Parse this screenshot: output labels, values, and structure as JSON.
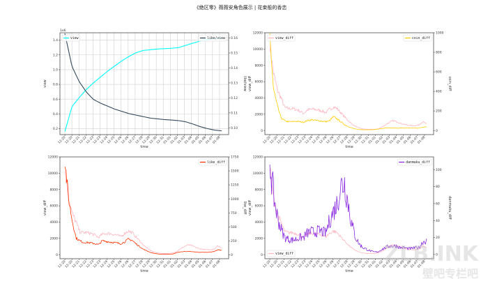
{
  "title": "《绝区零》薇薇安角色展示 | 花束般的香恋",
  "watermark": {
    "line1": "ZLB.INK",
    "line2": "壁吧专栏吧"
  },
  "chart_data": [
    {
      "type": "line",
      "xlabel": "time",
      "ylabel": "view",
      "ylabel_right": "like/view",
      "offset_text": "1e6",
      "grid": true,
      "xticks": [
        "12-20",
        "12-20",
        "12-21",
        "12-22",
        "12-23",
        "12-23",
        "12-24",
        "12-25",
        "12-26",
        "12-26",
        "12-27",
        "12-28",
        "12-29",
        "12-30",
        "12-31",
        "01-01",
        "01-02",
        "01-03",
        "01-04",
        "01-05",
        "01-06",
        "01-07",
        "01-08"
      ],
      "ylim": [
        0.12,
        1.5
      ],
      "yticks": [
        "0.2",
        "0.4",
        "0.6",
        "0.8",
        "1.0",
        "1.2",
        "1.4"
      ],
      "ylim_right": [
        0.0955,
        0.1635
      ],
      "yticks_right": [
        "0.10",
        "0.11",
        "0.12",
        "0.13",
        "0.14",
        "0.15",
        "0.16"
      ],
      "noise": 0,
      "series": [
        {
          "name": "view",
          "axis": "left",
          "color": "#00ffff",
          "legend": "top-left",
          "values": [
            0.16,
            0.5,
            0.62,
            0.73,
            0.82,
            0.9,
            0.98,
            1.05,
            1.12,
            1.18,
            1.23,
            1.26,
            1.27,
            1.28,
            1.285,
            1.29,
            1.3,
            1.33,
            1.36,
            1.39,
            1.41,
            1.42,
            1.43
          ]
        },
        {
          "name": "like/view",
          "axis": "right",
          "color": "#34495e",
          "legend": "top-right",
          "values": [
            0.163,
            0.141,
            0.131,
            0.124,
            0.119,
            0.1165,
            0.1145,
            0.1125,
            0.111,
            0.1095,
            0.1085,
            0.1075,
            0.1065,
            0.106,
            0.1055,
            0.1052,
            0.1048,
            0.104,
            0.1025,
            0.1008,
            0.0995,
            0.0985,
            0.098
          ]
        }
      ]
    },
    {
      "type": "line",
      "xlabel": "time",
      "ylabel": "view_diff",
      "ylabel_right": "coin_diff",
      "grid": false,
      "xticks": [
        "12-20",
        "12-20",
        "12-21",
        "12-22",
        "12-23",
        "12-23",
        "12-24",
        "12-25",
        "12-26",
        "12-26",
        "12-27",
        "12-28",
        "12-29",
        "12-30",
        "12-31",
        "01-01",
        "01-02",
        "01-03",
        "01-04",
        "01-05",
        "01-06",
        "01-07",
        "01-08"
      ],
      "ylim": [
        -500,
        12000
      ],
      "yticks": [
        "0",
        "2000",
        "4000",
        "6000",
        "8000",
        "10000",
        "12000"
      ],
      "ylim_right": [
        -41.7,
        1000
      ],
      "yticks_right": [
        "0",
        "200",
        "400",
        "600",
        "800",
        "1000"
      ],
      "noise": 1,
      "series": [
        {
          "name": "view_diff",
          "axis": "left",
          "color": "#ffb6c1",
          "legend": "top-left",
          "values": [
            10500,
            7000,
            5000,
            4000,
            2800,
            2700,
            2700,
            2600,
            2400,
            2100,
            2500,
            2600,
            2600,
            2500,
            2400,
            2200,
            2600,
            2900,
            2700,
            2200,
            1700,
            1200,
            800,
            500,
            300,
            200,
            150,
            150,
            150,
            200,
            400,
            700,
            1000,
            1200,
            1100,
            900,
            750,
            650,
            600,
            600,
            700,
            1100,
            800
          ]
        },
        {
          "name": "coin_diff",
          "axis": "right",
          "color": "#ffcc00",
          "legend": "top-right",
          "values": [
            950,
            420,
            250,
            130,
            100,
            90,
            90,
            95,
            90,
            85,
            100,
            110,
            105,
            100,
            95,
            90,
            100,
            140,
            120,
            90,
            60,
            40,
            25,
            15,
            10,
            8,
            8,
            8,
            10,
            15,
            20,
            25,
            25,
            25,
            25,
            25,
            25,
            25,
            25,
            25,
            25,
            35,
            40
          ]
        }
      ]
    },
    {
      "type": "line",
      "xlabel": "time",
      "ylabel": "view_diff",
      "ylabel_right": "like_diff",
      "grid": false,
      "xticks": [
        "12-20",
        "12-20",
        "12-21",
        "12-22",
        "12-23",
        "12-23",
        "12-24",
        "12-25",
        "12-26",
        "12-26",
        "12-27",
        "12-28",
        "12-29",
        "12-30",
        "12-31",
        "01-01",
        "01-02",
        "01-03",
        "01-04",
        "01-05",
        "01-06",
        "01-07",
        "01-08"
      ],
      "ylim": [
        -500,
        12000
      ],
      "yticks": [
        "0",
        "2000",
        "4000",
        "6000",
        "8000",
        "10000",
        "12000"
      ],
      "ylim_right": [
        -70,
        1750
      ],
      "yticks_right": [
        "0",
        "250",
        "500",
        "750",
        "1000",
        "1250",
        "1500",
        "1750"
      ],
      "noise": 1,
      "series": [
        {
          "name": "view_diff",
          "axis": "left",
          "color": "#ffb6c1",
          "legend": "none",
          "values": [
            10500,
            7000,
            5000,
            4000,
            2800,
            2700,
            2700,
            2600,
            2400,
            2100,
            2500,
            2600,
            2600,
            2500,
            2400,
            2200,
            2600,
            2900,
            2700,
            2200,
            1700,
            1200,
            800,
            500,
            300,
            200,
            150,
            150,
            150,
            200,
            400,
            700,
            1000,
            1200,
            1100,
            900,
            750,
            650,
            600,
            600,
            700,
            1100,
            800
          ]
        },
        {
          "name": "like_diff",
          "axis": "right",
          "color": "#ff3300",
          "legend": "top-right",
          "values": [
            1700,
            1000,
            600,
            300,
            250,
            220,
            220,
            210,
            200,
            180,
            250,
            240,
            230,
            220,
            210,
            200,
            230,
            280,
            260,
            200,
            150,
            100,
            70,
            40,
            25,
            15,
            10,
            10,
            10,
            15,
            40,
            50,
            60,
            60,
            55,
            50,
            45,
            45,
            45,
            50,
            60,
            90,
            80
          ]
        }
      ]
    },
    {
      "type": "line",
      "xlabel": "time",
      "ylabel": "view_diff",
      "ylabel_right": "danmaku_diff",
      "grid": false,
      "xticks": [
        "12-20",
        "12-20",
        "12-21",
        "12-22",
        "12-23",
        "12-23",
        "12-24",
        "12-25",
        "12-26",
        "12-26",
        "12-27",
        "12-28",
        "12-29",
        "12-30",
        "12-31",
        "01-01",
        "01-02",
        "01-03",
        "01-04",
        "01-05",
        "01-06",
        "01-07",
        "01-08"
      ],
      "ylim": [
        -500,
        12000
      ],
      "yticks": [
        "0",
        "2000",
        "4000",
        "6000",
        "8000",
        "10000",
        "12000"
      ],
      "ylim_right": [
        -5,
        115
      ],
      "yticks_right": [
        "0",
        "20",
        "40",
        "60",
        "80",
        "100"
      ],
      "noise": 2,
      "series": [
        {
          "name": "view_diff",
          "axis": "left",
          "color": "#ffb6c1",
          "legend": "bottom-left",
          "values": [
            10500,
            7000,
            5000,
            4000,
            2800,
            2700,
            2700,
            2600,
            2400,
            2100,
            2500,
            2600,
            2600,
            2500,
            2400,
            2200,
            2600,
            2900,
            2700,
            2200,
            1700,
            1200,
            800,
            500,
            300,
            200,
            150,
            150,
            150,
            200,
            400,
            700,
            1000,
            1200,
            1100,
            900,
            750,
            650,
            600,
            600,
            700,
            1100,
            800
          ]
        },
        {
          "name": "danmaku_diff",
          "axis": "right",
          "color": "#8a2be2",
          "legend": "top-right",
          "values": [
            112,
            70,
            45,
            30,
            20,
            18,
            17,
            18,
            20,
            20,
            25,
            27,
            26,
            28,
            27,
            25,
            40,
            50,
            60,
            80,
            85,
            60,
            35,
            20,
            12,
            8,
            6,
            4,
            3,
            3,
            6,
            8,
            10,
            10,
            10,
            8,
            8,
            7,
            7,
            8,
            8,
            15,
            16
          ]
        }
      ]
    }
  ]
}
